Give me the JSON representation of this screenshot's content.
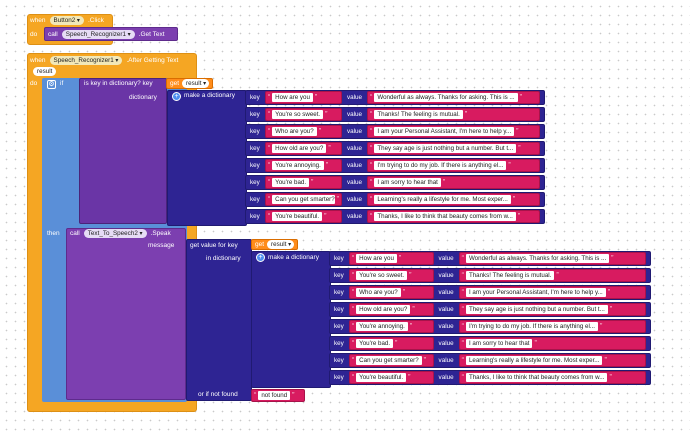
{
  "colors": {
    "event": "#f5a623",
    "component": "#7c3fb0",
    "dictionary": "#2e2493",
    "text": "#d81b60",
    "variable": "#ff8c1a",
    "control": "#5a8fd8"
  },
  "block1": {
    "when": "when",
    "component": "Button2",
    "event": ".Click",
    "do": "do",
    "call": "call",
    "target": "Speech_Recognizer1",
    "method": ".Get Text"
  },
  "block2": {
    "when": "when",
    "component": "Speech_Recognizer1",
    "event": ".After Getting Text",
    "param": "result",
    "do": "do"
  },
  "if_block": {
    "if": "if",
    "then": "then",
    "is_key": "is key in dictionary? key",
    "dictionary": "dictionary",
    "get": "get",
    "var": "result",
    "make_dict": "make a dictionary",
    "key": "key",
    "value": "value"
  },
  "speak": {
    "call": "call",
    "component": "Text_To_Speech2",
    "method": ".Speak",
    "message": "message",
    "get_value": "get value for key",
    "in_dictionary": "in dictionary",
    "get": "get",
    "var": "result",
    "make_dict": "make a dictionary",
    "or_if_not_found": "or if not found",
    "not_found": "not found",
    "key": "key",
    "value": "value"
  },
  "pairs": [
    {
      "key": "How are you",
      "value": "Wonderful as always. Thanks for asking. This is ..."
    },
    {
      "key": "You're so sweet.",
      "value": "Thanks! The feeling is mutual."
    },
    {
      "key": "Who are you?",
      "value": "I am your Personal Assistant, I'm here to help y..."
    },
    {
      "key": "How old are you?",
      "value": "They say age is just nothing but a number. But t..."
    },
    {
      "key": "You're annoying.",
      "value": "I'm trying to do my job. If there is anything el..."
    },
    {
      "key": "You're bad.",
      "value": "I am sorry to hear that"
    },
    {
      "key": "Can you get smarter?",
      "value": "Learning's really a lifestyle for me. Most exper..."
    },
    {
      "key": "You're beautiful.",
      "value": "Thanks, I like to think that beauty comes from w..."
    }
  ]
}
